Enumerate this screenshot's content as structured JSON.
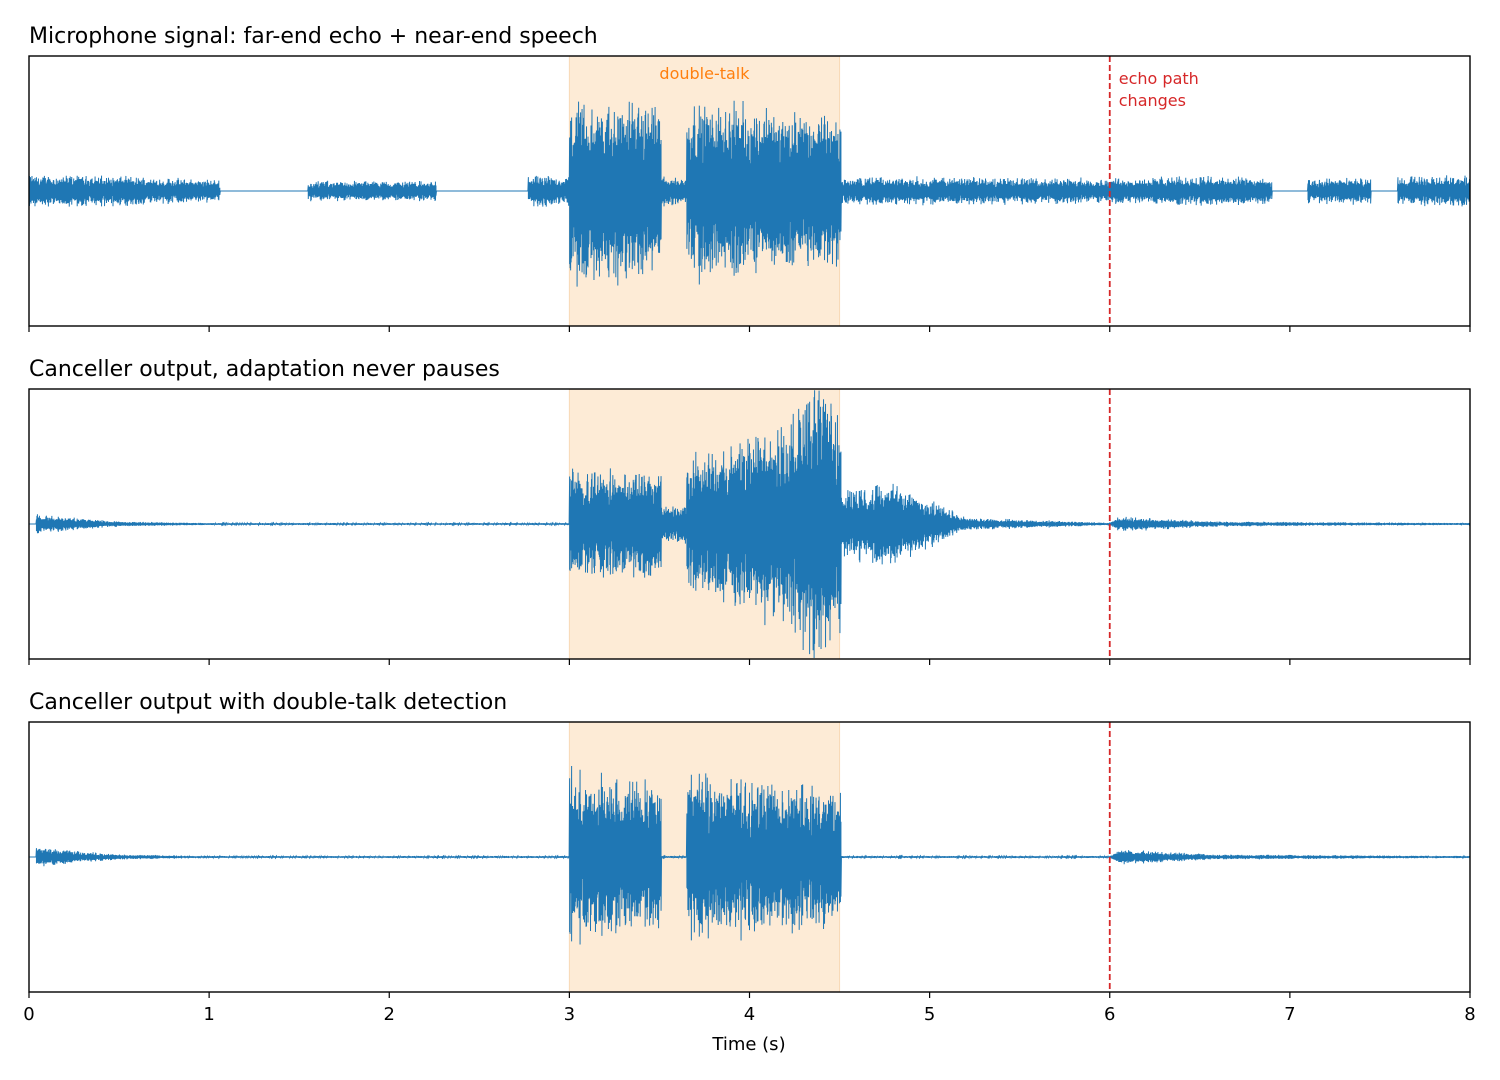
{
  "chart_data": {
    "type": "line",
    "shared_x_axis": {
      "label": "Time (s)",
      "range": [
        0,
        8
      ],
      "ticks": [
        "0",
        "1",
        "2",
        "3",
        "4",
        "5",
        "6",
        "7",
        "8"
      ]
    },
    "colors": {
      "signal": "#1f77b4",
      "double_talk_band": "#fdebd6",
      "double_talk_text": "#ff7f0e",
      "echo_change_line": "#d62728"
    },
    "regions": {
      "double_talk": {
        "x_start": 3.0,
        "x_end": 4.5
      },
      "echo_path_change": {
        "x": 6.0
      }
    },
    "far_end_segments": [
      [
        0.0,
        1.06
      ],
      [
        1.55,
        2.26
      ],
      [
        2.77,
        6.0
      ],
      [
        6.0,
        6.9
      ],
      [
        7.1,
        7.45
      ],
      [
        7.6,
        8.0
      ]
    ],
    "near_end_segments": [
      [
        3.0,
        3.51
      ],
      [
        3.65,
        4.51
      ]
    ],
    "panels": [
      {
        "title": "Microphone signal: far-end echo + near-end speech",
        "annotation_double_talk": "double-talk",
        "annotation_echo_line1": "echo path",
        "annotation_echo_line2": "changes",
        "envelope": [
          {
            "t": 0.0,
            "echo": 0.13
          },
          {
            "t": 0.5,
            "echo": 0.12
          },
          {
            "t": 1.0,
            "echo": 0.09
          },
          {
            "t": 1.6,
            "echo": 0.08
          },
          {
            "t": 2.2,
            "echo": 0.08
          },
          {
            "t": 2.8,
            "echo": 0.12
          },
          {
            "t": 3.0,
            "echo": 0.12,
            "near": 0.68
          },
          {
            "t": 3.5,
            "echo": 0.12,
            "near": 0.55
          },
          {
            "t": 3.7,
            "echo": 0.1,
            "near": 0.62
          },
          {
            "t": 4.3,
            "echo": 0.1,
            "near": 0.55
          },
          {
            "t": 4.5,
            "echo": 0.11,
            "near": 0.5
          },
          {
            "t": 5.0,
            "echo": 0.11
          },
          {
            "t": 6.0,
            "echo": 0.1
          },
          {
            "t": 6.5,
            "echo": 0.12
          },
          {
            "t": 7.0,
            "echo": 0.09
          },
          {
            "t": 8.0,
            "echo": 0.13
          }
        ]
      },
      {
        "title": "Canceller output, adaptation never pauses",
        "envelope": [
          {
            "t": 0.0,
            "residual": 0.08
          },
          {
            "t": 0.5,
            "residual": 0.02
          },
          {
            "t": 1.0,
            "residual": 0.008
          },
          {
            "t": 3.0,
            "residual": 0.008,
            "near": 0.42
          },
          {
            "t": 3.5,
            "near": 0.35
          },
          {
            "t": 3.7,
            "near": 0.42
          },
          {
            "t": 4.2,
            "near": 0.62
          },
          {
            "t": 4.4,
            "near": 1.0
          },
          {
            "t": 4.5,
            "near": 0.6
          },
          {
            "t": 4.8,
            "residual": 0.35
          },
          {
            "t": 5.2,
            "residual": 0.05
          },
          {
            "t": 6.0,
            "residual": 0.01
          },
          {
            "t": 6.05,
            "residual": 0.06
          },
          {
            "t": 6.6,
            "residual": 0.02
          },
          {
            "t": 8.0,
            "residual": 0.008
          }
        ]
      },
      {
        "title": "Canceller output with double-talk detection",
        "envelope": [
          {
            "t": 0.0,
            "residual": 0.08
          },
          {
            "t": 0.5,
            "residual": 0.02
          },
          {
            "t": 1.0,
            "residual": 0.008
          },
          {
            "t": 3.0,
            "near": 0.68
          },
          {
            "t": 3.5,
            "near": 0.6
          },
          {
            "t": 3.7,
            "near": 0.66
          },
          {
            "t": 4.5,
            "near": 0.55
          },
          {
            "t": 4.51,
            "residual": 0.008
          },
          {
            "t": 6.0,
            "residual": 0.008
          },
          {
            "t": 6.05,
            "residual": 0.06
          },
          {
            "t": 6.6,
            "residual": 0.02
          },
          {
            "t": 8.0,
            "residual": 0.008
          }
        ]
      }
    ]
  }
}
